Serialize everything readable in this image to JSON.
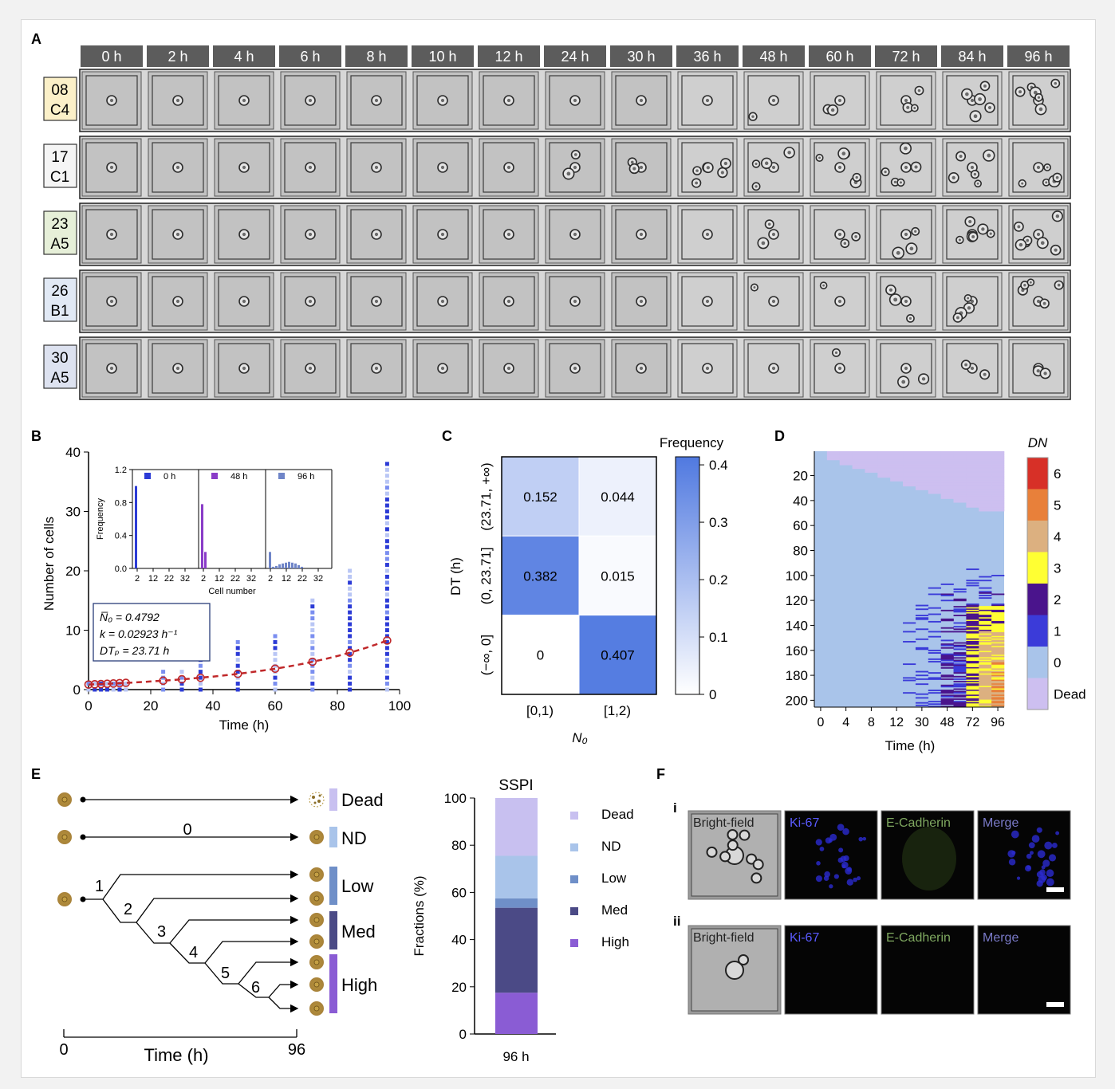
{
  "panel_letters": {
    "a": "A",
    "b": "B",
    "c": "C",
    "d": "D",
    "e": "E",
    "f": "F"
  },
  "panel_a": {
    "timepoints": [
      "0 h",
      "2 h",
      "4 h",
      "6 h",
      "8 h",
      "10 h",
      "12 h",
      "24 h",
      "30 h",
      "36 h",
      "48 h",
      "60 h",
      "72 h",
      "84 h",
      "96 h"
    ],
    "rows": [
      {
        "label_top": "08",
        "label_bottom": "C4",
        "color": "#fbf0c8",
        "cells": [
          1,
          1,
          1,
          1,
          1,
          1,
          1,
          1,
          1,
          1,
          2,
          3,
          4,
          6,
          7
        ]
      },
      {
        "label_top": "17",
        "label_bottom": "C1",
        "color": "#f5f5f5",
        "cells": [
          1,
          1,
          1,
          1,
          1,
          1,
          1,
          3,
          3,
          6,
          5,
          6,
          6,
          6,
          6
        ]
      },
      {
        "label_top": "23",
        "label_bottom": "A5",
        "color": "#e6efd8",
        "cells": [
          1,
          1,
          1,
          1,
          1,
          1,
          1,
          1,
          1,
          1,
          3,
          3,
          4,
          7,
          8
        ]
      },
      {
        "label_top": "26",
        "label_bottom": "B1",
        "color": "#e1e9f5",
        "cells": [
          1,
          1,
          1,
          1,
          1,
          1,
          1,
          1,
          1,
          1,
          2,
          2,
          4,
          5,
          6
        ]
      },
      {
        "label_top": "30",
        "label_bottom": "A5",
        "color": "#dde2f0",
        "cells": [
          1,
          1,
          1,
          1,
          1,
          1,
          1,
          1,
          1,
          1,
          1,
          2,
          3,
          3,
          3
        ]
      }
    ]
  },
  "panel_b": {
    "ylabel": "Number of cells",
    "xlabel": "Time (h)",
    "yticks": [
      "0",
      "10",
      "20",
      "30",
      "40"
    ],
    "xticks": [
      "0",
      "20",
      "40",
      "60",
      "80",
      "100"
    ],
    "fit_line_1": "N̅₀ = 0.4792",
    "fit_line_2": "k = 0.02923 h⁻¹",
    "fit_line_3": "DTₚ = 23.71 h",
    "inset": {
      "ylabel": "Frequency",
      "xlabel": "Cell number",
      "yticks": [
        "0.0",
        "0.4",
        "0.8",
        "1.2"
      ],
      "xticks": [
        "2",
        "12",
        "22",
        "32"
      ],
      "legend": [
        "0 h",
        "48 h",
        "96 h"
      ]
    }
  },
  "panel_c": {
    "colorbar_title": "Frequency",
    "colorbar_ticks": [
      "0.4",
      "0.3",
      "0.2",
      "0.1",
      "0"
    ],
    "row_labels": [
      "(23.71, +∞)",
      "(0, 23.71]",
      "(−∞, 0]"
    ],
    "col_labels": [
      "[0,1)",
      "[1,2)"
    ],
    "ylabel": "DT (h)",
    "xlabel": "N₀",
    "cells": [
      [
        "0.152",
        "0.044"
      ],
      [
        "0.382",
        "0.015"
      ],
      [
        "0",
        "0.407"
      ]
    ]
  },
  "panel_d": {
    "colorbar_title": "DN",
    "colorbar_labels": [
      "6",
      "5",
      "4",
      "3",
      "2",
      "1",
      "0",
      "Dead"
    ],
    "colorbar_colors": [
      "#d73027",
      "#e8803a",
      "#dcb080",
      "#ffff33",
      "#4a148c",
      "#3b3bd9",
      "#a9c4ea",
      "#cdbff0"
    ],
    "yticks": [
      "20",
      "40",
      "60",
      "80",
      "100",
      "120",
      "140",
      "160",
      "180",
      "200"
    ],
    "xticks": [
      "0",
      "4",
      "8",
      "12",
      "30",
      "48",
      "72",
      "96"
    ],
    "xlabel": "Time (h)"
  },
  "panel_e": {
    "categories": [
      "Dead",
      "ND",
      "Low",
      "Med",
      "High"
    ],
    "category_colors": [
      "#c8c0f0",
      "#a9c4ea",
      "#6f8fc8",
      "#4b4a86",
      "#8a5cd4"
    ],
    "division_numbers": [
      "0",
      "1",
      "2",
      "3",
      "4",
      "5",
      "6"
    ],
    "axis_start": "0",
    "axis_end": "96",
    "axis_label": "Time (h)",
    "bar_title": "SSPI",
    "bar_ylabel": "Fractions (%)",
    "bar_yticks": [
      "0",
      "20",
      "40",
      "60",
      "80",
      "100"
    ],
    "bar_xlabel": "96 h"
  },
  "chart_data": {
    "type": "bar",
    "categories": [
      "96 h"
    ],
    "series": [
      {
        "name": "High",
        "values": [
          17.5
        ]
      },
      {
        "name": "Med",
        "values": [
          36
        ]
      },
      {
        "name": "Low",
        "values": [
          4
        ]
      },
      {
        "name": "ND",
        "values": [
          18
        ]
      },
      {
        "name": "Dead",
        "values": [
          24.5
        ]
      }
    ],
    "title": "SSPI",
    "ylabel": "Fractions (%)",
    "ylim": [
      0,
      100
    ],
    "stacked": true
  },
  "panel_f": {
    "rows": [
      "i",
      "ii"
    ],
    "channels": [
      "Bright-field",
      "Ki-67",
      "E-Cadherin",
      "Merge"
    ],
    "channel_colors": [
      "#222222",
      "#5a5aff",
      "#7fa860",
      "#7a7ac8"
    ]
  }
}
